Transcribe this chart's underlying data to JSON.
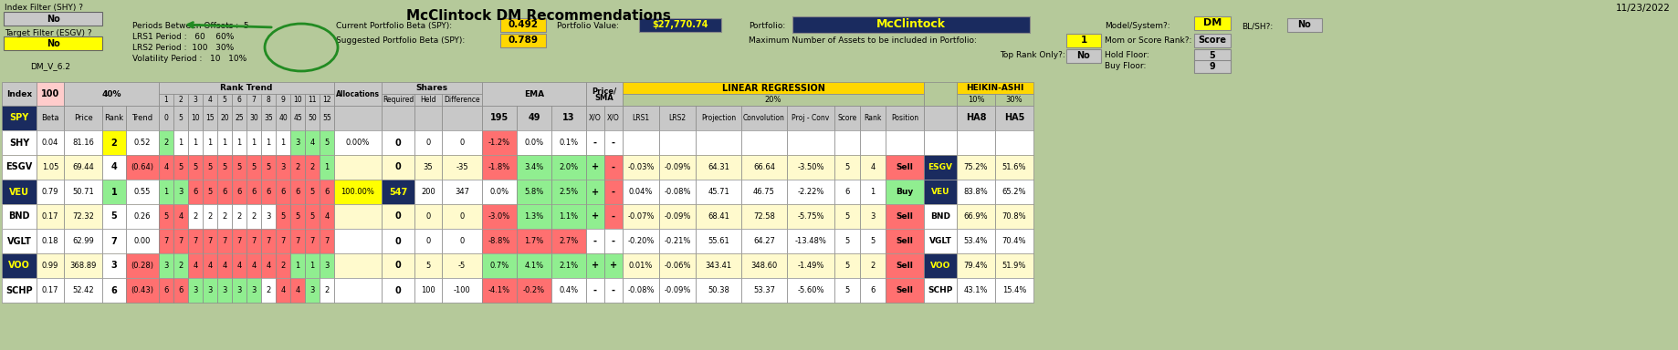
{
  "title": "McClintock DM Recommendations",
  "date": "11/23/2022",
  "bg_color": "#b5c99a",
  "index_filter_label": "Index Filter (SHY) ?",
  "index_filter_val": "No",
  "target_filter_label": "Target Filter (ESGV) ?",
  "target_filter_val": "No",
  "target_filter_color": "#ffff00",
  "version": "DM_V_6.2",
  "periods_between_offsets": "5",
  "lrs1_period": "60",
  "lrs1_pct": "60%",
  "lrs2_period": "100",
  "lrs2_pct": "30%",
  "vol_period": "10",
  "vol_pct": "10%",
  "current_beta_label": "Current Portfolio Beta (SPY):",
  "current_beta_val": "0.492",
  "portfolio_value_label": "Portfolio Value:",
  "portfolio_value_val": "$27,770.74",
  "portfolio_value_color": "#ffff00",
  "portfolio_value_bg": "#1a2b5f",
  "suggested_beta_label": "Suggested Portfolio Beta (SPY):",
  "suggested_beta_val": "0.789",
  "portfolio_label": "Portfolio:",
  "portfolio_name": "McClintock",
  "portfolio_name_color": "#ffff00",
  "portfolio_name_bg": "#1a2b5f",
  "max_assets_label": "Maximum Number of Assets to be included in Portfolio:",
  "max_assets_val": "1",
  "max_assets_color": "#ffff00",
  "top_rank_label": "Top Rank Only?:",
  "top_rank_val": "No",
  "model_label": "Model/System?:",
  "model_val": "DM",
  "model_color": "#ffff00",
  "mom_label": "Mom or Score Rank?:",
  "mom_val": "Score",
  "hold_floor_label": "Hold Floor:",
  "hold_floor_val": "5",
  "buy_floor_label": "Buy Floor:",
  "buy_floor_val": "9",
  "blsh_label": "BL/SH?:",
  "blsh_val": "No",
  "dark_navy": "#1a2b5f",
  "light_gray": "#c8c8c8",
  "mid_gray": "#d0d0d0",
  "salmon": "#ffcccb",
  "yellow": "#ffff00",
  "green": "#90ee90",
  "red": "#ff7070",
  "gold": "#ffd700",
  "rows": [
    {
      "index": "SHY",
      "index_bg": "#ffffff",
      "index_color": "#000000",
      "beta": "0.04",
      "price": "81.16",
      "rank": "2",
      "rank_bg": "#ffff00",
      "trend": "0.52",
      "trend_bg": "#ffffff",
      "rt": [
        "2",
        "1",
        "1",
        "1",
        "1",
        "1",
        "1",
        "1",
        "1",
        "3",
        "4",
        "5"
      ],
      "rt_colors": [
        "#90ee90",
        "#ffffff",
        "#ffffff",
        "#ffffff",
        "#ffffff",
        "#ffffff",
        "#ffffff",
        "#ffffff",
        "#ffffff",
        "#90ee90",
        "#90ee90",
        "#90ee90"
      ],
      "alloc": "0.00%",
      "alloc_bg": "#ffffff",
      "req": "0",
      "req_bg": "#ffffff",
      "req_color": "#000000",
      "held": "0",
      "diff": "0",
      "ema195": "-1.2%",
      "ema195_bg": "#ff7070",
      "ema49": "0.0%",
      "ema49_bg": "#ffffff",
      "ema13": "0.1%",
      "ema13_bg": "#ffffff",
      "xo1": "-",
      "xo1_bg": "#ffffff",
      "xo2": "-",
      "xo2_bg": "#ffffff",
      "lrs1": "",
      "lrs2": "",
      "proj": "",
      "conv": "",
      "projconv": "",
      "score": "",
      "rankc": "",
      "pos": "",
      "pos_bg": "#ffffff",
      "name_right": "",
      "name_right_bg": "#ffffff",
      "name_right_color": "#000000",
      "ha8": "",
      "ha5": "",
      "row_bg": "#ffffff"
    },
    {
      "index": "ESGV",
      "index_bg": "#ffffff",
      "index_color": "#000000",
      "beta": "1.05",
      "price": "69.44",
      "rank": "4",
      "rank_bg": "#ffffff",
      "trend": "(0.64)",
      "trend_bg": "#ff7070",
      "rt": [
        "4",
        "5",
        "5",
        "5",
        "5",
        "5",
        "5",
        "5",
        "3",
        "2",
        "2",
        "1"
      ],
      "rt_colors": [
        "#ff7070",
        "#ff7070",
        "#ff7070",
        "#ff7070",
        "#ff7070",
        "#ff7070",
        "#ff7070",
        "#ff7070",
        "#ff7070",
        "#ff7070",
        "#ff7070",
        "#90ee90"
      ],
      "alloc": "",
      "alloc_bg": "#fffacd",
      "req": "0",
      "req_bg": "#fffacd",
      "req_color": "#000000",
      "held": "35",
      "diff": "-35",
      "ema195": "-1.8%",
      "ema195_bg": "#ff7070",
      "ema49": "3.4%",
      "ema49_bg": "#90ee90",
      "ema13": "2.0%",
      "ema13_bg": "#90ee90",
      "xo1": "+",
      "xo1_bg": "#90ee90",
      "xo2": "-",
      "xo2_bg": "#ff7070",
      "lrs1": "-0.03%",
      "lrs2": "-0.09%",
      "proj": "64.31",
      "conv": "66.64",
      "projconv": "-3.50%",
      "score": "5",
      "rankc": "4",
      "pos": "Sell",
      "pos_bg": "#ff7070",
      "name_right": "ESGV",
      "name_right_bg": "#1a2b5f",
      "name_right_color": "#ffff00",
      "ha8": "75.2%",
      "ha5": "51.6%",
      "row_bg": "#fffacd"
    },
    {
      "index": "VEU",
      "index_bg": "#1a2b5f",
      "index_color": "#ffff00",
      "beta": "0.79",
      "price": "50.71",
      "rank": "1",
      "rank_bg": "#90ee90",
      "trend": "0.55",
      "trend_bg": "#ffffff",
      "rt": [
        "1",
        "3",
        "6",
        "5",
        "6",
        "6",
        "6",
        "6",
        "6",
        "6",
        "5",
        "6"
      ],
      "rt_colors": [
        "#90ee90",
        "#90ee90",
        "#ff7070",
        "#ff7070",
        "#ff7070",
        "#ff7070",
        "#ff7070",
        "#ff7070",
        "#ff7070",
        "#ff7070",
        "#ff7070",
        "#ff7070"
      ],
      "alloc": "100.00%",
      "alloc_bg": "#ffff00",
      "req": "547",
      "req_bg": "#1a2b5f",
      "req_color": "#ffff00",
      "held": "200",
      "diff": "347",
      "ema195": "0.0%",
      "ema195_bg": "#ffffff",
      "ema49": "5.8%",
      "ema49_bg": "#90ee90",
      "ema13": "2.5%",
      "ema13_bg": "#90ee90",
      "xo1": "+",
      "xo1_bg": "#90ee90",
      "xo2": "-",
      "xo2_bg": "#ff7070",
      "lrs1": "0.04%",
      "lrs2": "-0.08%",
      "proj": "45.71",
      "conv": "46.75",
      "projconv": "-2.22%",
      "score": "6",
      "rankc": "1",
      "pos": "Buy",
      "pos_bg": "#90ee90",
      "name_right": "VEU",
      "name_right_bg": "#1a2b5f",
      "name_right_color": "#ffff00",
      "ha8": "83.8%",
      "ha5": "65.2%",
      "row_bg": "#ffffff"
    },
    {
      "index": "BND",
      "index_bg": "#ffffff",
      "index_color": "#000000",
      "beta": "0.17",
      "price": "72.32",
      "rank": "5",
      "rank_bg": "#ffffff",
      "trend": "0.26",
      "trend_bg": "#ffffff",
      "rt": [
        "5",
        "4",
        "2",
        "2",
        "2",
        "2",
        "2",
        "3",
        "5",
        "5",
        "5",
        "4"
      ],
      "rt_colors": [
        "#ff7070",
        "#ff7070",
        "#ffffff",
        "#ffffff",
        "#ffffff",
        "#ffffff",
        "#ffffff",
        "#ffffff",
        "#ff7070",
        "#ff7070",
        "#ff7070",
        "#ff7070"
      ],
      "alloc": "",
      "alloc_bg": "#fffacd",
      "req": "0",
      "req_bg": "#fffacd",
      "req_color": "#000000",
      "held": "0",
      "diff": "0",
      "ema195": "-3.0%",
      "ema195_bg": "#ff7070",
      "ema49": "1.3%",
      "ema49_bg": "#90ee90",
      "ema13": "1.1%",
      "ema13_bg": "#90ee90",
      "xo1": "+",
      "xo1_bg": "#90ee90",
      "xo2": "-",
      "xo2_bg": "#ff7070",
      "lrs1": "-0.07%",
      "lrs2": "-0.09%",
      "proj": "68.41",
      "conv": "72.58",
      "projconv": "-5.75%",
      "score": "5",
      "rankc": "3",
      "pos": "Sell",
      "pos_bg": "#ff7070",
      "name_right": "BND",
      "name_right_bg": "#ffffff",
      "name_right_color": "#000000",
      "ha8": "66.9%",
      "ha5": "70.8%",
      "row_bg": "#fffacd"
    },
    {
      "index": "VGLT",
      "index_bg": "#ffffff",
      "index_color": "#000000",
      "beta": "0.18",
      "price": "62.99",
      "rank": "7",
      "rank_bg": "#ffffff",
      "trend": "0.00",
      "trend_bg": "#ffffff",
      "rt": [
        "7",
        "7",
        "7",
        "7",
        "7",
        "7",
        "7",
        "7",
        "7",
        "7",
        "7",
        "7"
      ],
      "rt_colors": [
        "#ff7070",
        "#ff7070",
        "#ff7070",
        "#ff7070",
        "#ff7070",
        "#ff7070",
        "#ff7070",
        "#ff7070",
        "#ff7070",
        "#ff7070",
        "#ff7070",
        "#ff7070"
      ],
      "alloc": "",
      "alloc_bg": "#ffffff",
      "req": "0",
      "req_bg": "#ffffff",
      "req_color": "#000000",
      "held": "0",
      "diff": "0",
      "ema195": "-8.8%",
      "ema195_bg": "#ff7070",
      "ema49": "1.7%",
      "ema49_bg": "#ff7070",
      "ema13": "2.7%",
      "ema13_bg": "#ff7070",
      "xo1": "-",
      "xo1_bg": "#ffffff",
      "xo2": "-",
      "xo2_bg": "#ffffff",
      "lrs1": "-0.20%",
      "lrs2": "-0.21%",
      "proj": "55.61",
      "conv": "64.27",
      "projconv": "-13.48%",
      "score": "5",
      "rankc": "5",
      "pos": "Sell",
      "pos_bg": "#ff7070",
      "name_right": "VGLT",
      "name_right_bg": "#ffffff",
      "name_right_color": "#000000",
      "ha8": "53.4%",
      "ha5": "70.4%",
      "row_bg": "#ffffff"
    },
    {
      "index": "VOO",
      "index_bg": "#1a2b5f",
      "index_color": "#ffff00",
      "beta": "0.99",
      "price": "368.89",
      "rank": "3",
      "rank_bg": "#ffffff",
      "trend": "(0.28)",
      "trend_bg": "#ff7070",
      "rt": [
        "3",
        "2",
        "4",
        "4",
        "4",
        "4",
        "4",
        "4",
        "2",
        "1",
        "1",
        "3"
      ],
      "rt_colors": [
        "#90ee90",
        "#90ee90",
        "#ff7070",
        "#ff7070",
        "#ff7070",
        "#ff7070",
        "#ff7070",
        "#ff7070",
        "#ff7070",
        "#90ee90",
        "#90ee90",
        "#90ee90"
      ],
      "alloc": "",
      "alloc_bg": "#fffacd",
      "req": "0",
      "req_bg": "#fffacd",
      "req_color": "#000000",
      "held": "5",
      "diff": "-5",
      "ema195": "0.7%",
      "ema195_bg": "#90ee90",
      "ema49": "4.1%",
      "ema49_bg": "#90ee90",
      "ema13": "2.1%",
      "ema13_bg": "#90ee90",
      "xo1": "+",
      "xo1_bg": "#90ee90",
      "xo2": "+",
      "xo2_bg": "#90ee90",
      "lrs1": "0.01%",
      "lrs2": "-0.06%",
      "proj": "343.41",
      "conv": "348.60",
      "projconv": "-1.49%",
      "score": "5",
      "rankc": "2",
      "pos": "Sell",
      "pos_bg": "#ff7070",
      "name_right": "VOO",
      "name_right_bg": "#1a2b5f",
      "name_right_color": "#ffff00",
      "ha8": "79.4%",
      "ha5": "51.9%",
      "row_bg": "#fffacd"
    },
    {
      "index": "SCHP",
      "index_bg": "#ffffff",
      "index_color": "#000000",
      "beta": "0.17",
      "price": "52.42",
      "rank": "6",
      "rank_bg": "#ffffff",
      "trend": "(0.43)",
      "trend_bg": "#ff7070",
      "rt": [
        "6",
        "6",
        "3",
        "3",
        "3",
        "3",
        "3",
        "2",
        "4",
        "4",
        "3",
        "2"
      ],
      "rt_colors": [
        "#ff7070",
        "#ff7070",
        "#90ee90",
        "#90ee90",
        "#90ee90",
        "#90ee90",
        "#90ee90",
        "#ffffff",
        "#ff7070",
        "#ff7070",
        "#90ee90",
        "#ffffff"
      ],
      "alloc": "",
      "alloc_bg": "#ffffff",
      "req": "0",
      "req_bg": "#ffffff",
      "req_color": "#000000",
      "held": "100",
      "diff": "-100",
      "ema195": "-4.1%",
      "ema195_bg": "#ff7070",
      "ema49": "-0.2%",
      "ema49_bg": "#ff7070",
      "ema13": "0.4%",
      "ema13_bg": "#ffffff",
      "xo1": "-",
      "xo1_bg": "#ffffff",
      "xo2": "-",
      "xo2_bg": "#ffffff",
      "lrs1": "-0.08%",
      "lrs2": "-0.09%",
      "proj": "50.38",
      "conv": "53.37",
      "projconv": "-5.60%",
      "score": "5",
      "rankc": "6",
      "pos": "Sell",
      "pos_bg": "#ff7070",
      "name_right": "SCHP",
      "name_right_bg": "#ffffff",
      "name_right_color": "#000000",
      "ha8": "43.1%",
      "ha5": "15.4%",
      "row_bg": "#ffffff"
    }
  ]
}
